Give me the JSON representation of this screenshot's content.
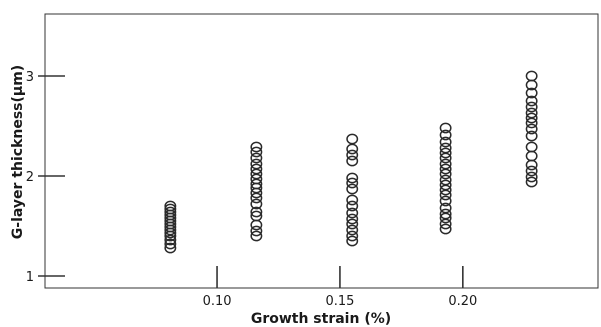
{
  "chart_data": {
    "type": "scatter",
    "title": "",
    "xlabel": "Growth strain (%)",
    "ylabel": "G-layer thickness(µm)",
    "xlim": [
      0.03,
      0.255
    ],
    "ylim": [
      0.88,
      3.62
    ],
    "x_ticks": [
      {
        "value": 0.1,
        "label": "0.10"
      },
      {
        "value": 0.15,
        "label": "0.15"
      },
      {
        "value": 0.2,
        "label": "0.20"
      }
    ],
    "y_ticks": [
      {
        "value": 1,
        "label": "1"
      },
      {
        "value": 2,
        "label": "2"
      },
      {
        "value": 3,
        "label": "3"
      }
    ],
    "grid": false,
    "legend": "none",
    "marker": "open-circle",
    "color": "#2b2b2b",
    "series": [
      {
        "x": 0.081,
        "y": [
          1.28,
          1.32,
          1.36,
          1.4,
          1.43,
          1.46,
          1.49,
          1.52,
          1.55,
          1.58,
          1.61,
          1.64,
          1.67,
          1.7
        ]
      },
      {
        "x": 0.116,
        "y": [
          1.4,
          1.45,
          1.51,
          1.6,
          1.64,
          1.72,
          1.78,
          1.83,
          1.88,
          1.92,
          1.97,
          2.02,
          2.07,
          2.12,
          2.18,
          2.24,
          2.29
        ]
      },
      {
        "x": 0.155,
        "y": [
          1.35,
          1.4,
          1.46,
          1.52,
          1.57,
          1.63,
          1.7,
          1.76,
          1.87,
          1.93,
          1.98,
          2.15,
          2.21,
          2.27,
          2.37
        ]
      },
      {
        "x": 0.193,
        "y": [
          1.47,
          1.52,
          1.58,
          1.62,
          1.68,
          1.75,
          1.81,
          1.86,
          1.91,
          1.96,
          2.02,
          2.07,
          2.12,
          2.18,
          2.23,
          2.28,
          2.34,
          2.41,
          2.48
        ]
      },
      {
        "x": 0.228,
        "y": [
          1.94,
          1.99,
          2.05,
          2.11,
          2.2,
          2.29,
          2.4,
          2.47,
          2.53,
          2.58,
          2.63,
          2.69,
          2.75,
          2.83,
          2.91,
          3.0
        ]
      }
    ]
  }
}
